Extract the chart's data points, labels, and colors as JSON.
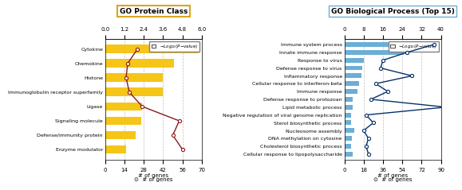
{
  "left": {
    "title": "GO Protein Class",
    "categories": [
      "Cytokine",
      "Chemokine",
      "Histone",
      "Immunoglobulin receptor superfamily",
      "Ligase",
      "Signaling molecule",
      "Defense/immunity protein",
      "Enzyme modulator"
    ],
    "bar_values": [
      68,
      50,
      42,
      42,
      27,
      26,
      22,
      15
    ],
    "pvalue_line": [
      2.0,
      1.4,
      1.3,
      1.5,
      2.3,
      4.6,
      4.2,
      4.8
    ],
    "bar_color": "#F5C518",
    "line_color": "#8B1A1A",
    "bar_xlim": [
      0,
      70
    ],
    "bar_xticks": [
      0,
      14,
      28,
      42,
      56,
      70
    ],
    "pval_xlim": [
      0,
      6
    ],
    "pval_xticks": [
      0,
      1.2,
      2.4,
      3.6,
      4.8,
      6
    ],
    "xlabel": "# of genes",
    "title_color": "#8B7A00",
    "title_box_color": "#DAA520"
  },
  "right": {
    "title": "GO Biological Process (Top 15)",
    "categories": [
      "Immune system process",
      "Innate immune response",
      "Response to virus",
      "Defense response to virus",
      "Inflammatory response",
      "Cellular response to interferon-beta",
      "Immune response",
      "Defense response to protozoan",
      "Lipid metabolic process",
      "Negative regulation of viral genome replication",
      "Sterol biosynthetic process",
      "Nucleosome assembly",
      "DNA methylation on cytosine",
      "Cholesterol biosynthetic process",
      "Cellular response to lipopolysaccharide"
    ],
    "bar_values": [
      87,
      55,
      18,
      17,
      16,
      14,
      12,
      8,
      8,
      6,
      6,
      9,
      7,
      6,
      8
    ],
    "pvalue_line": [
      37,
      26,
      16,
      15,
      28,
      13,
      18,
      11,
      42,
      9,
      12,
      8,
      10,
      9,
      10
    ],
    "bar_color": "#6BAED6",
    "line_color": "#08306B",
    "bar_xlim": [
      0,
      90
    ],
    "bar_xticks": [
      0,
      18,
      36,
      54,
      72,
      90
    ],
    "pval_xlim": [
      0,
      40
    ],
    "pval_xticks": [
      0,
      8,
      16,
      24,
      32,
      40
    ],
    "xlabel": "# of genes",
    "title_color": "#000000",
    "title_box_color": "#6BAED6"
  }
}
